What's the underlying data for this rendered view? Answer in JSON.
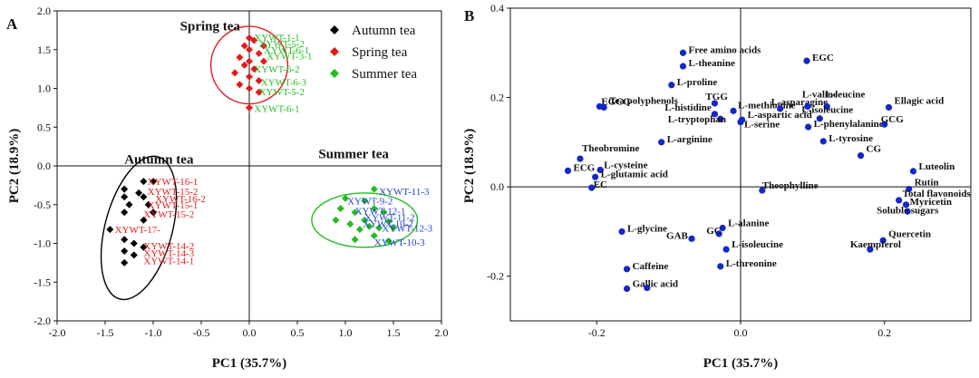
{
  "chart_data": [
    {
      "type": "scatter",
      "panel_label": "A",
      "xlabel": "PC1 (35.7%)",
      "ylabel": "PC2 (18.9%)",
      "xlim": [
        -2.0,
        2.0
      ],
      "ylim": [
        -2.0,
        2.0
      ],
      "xticks": [
        "-2.0",
        "-1.5",
        "-1.0",
        "-0.5",
        "0.0",
        "0.5",
        "1.0",
        "1.5",
        "2.0"
      ],
      "yticks": [
        "-2.0",
        "-1.5",
        "-1.0",
        "-0.5",
        "0.0",
        "0.5",
        "1.0",
        "1.5",
        "2.0"
      ],
      "legend": [
        {
          "name": "Autumn tea",
          "color": "#000000"
        },
        {
          "name": "Spring tea",
          "color": "#e31a1c"
        },
        {
          "name": "Summer tea",
          "color": "#22bb22"
        }
      ],
      "group_labels": [
        {
          "text": "Spring tea",
          "x": -0.72,
          "y": 1.75
        },
        {
          "text": "Autumn tea",
          "x": -1.3,
          "y": 0.03
        },
        {
          "text": "Summer tea",
          "x": 0.72,
          "y": 0.1
        }
      ],
      "ellipses": [
        {
          "group": "Spring tea",
          "color": "#e31a1c",
          "cx": 0.0,
          "cy": 1.3,
          "rx": 0.4,
          "ry": 0.5,
          "angle": 0
        },
        {
          "group": "Autumn tea",
          "color": "#000000",
          "cx": -1.15,
          "cy": -0.8,
          "rx": 0.35,
          "ry": 0.95,
          "angle": 15
        },
        {
          "group": "Summer tea",
          "color": "#22bb22",
          "cx": 1.2,
          "cy": -0.7,
          "rx": 0.55,
          "ry": 0.35,
          "angle": 0
        }
      ],
      "series": [
        {
          "name": "Autumn tea",
          "color": "#000000",
          "points": [
            [
              -1.1,
              -0.2
            ],
            [
              -1.0,
              -0.2
            ],
            [
              -1.3,
              -0.3
            ],
            [
              -1.15,
              -0.35
            ],
            [
              -1.1,
              -0.4
            ],
            [
              -1.3,
              -0.4
            ],
            [
              -1.25,
              -0.5
            ],
            [
              -1.05,
              -0.5
            ],
            [
              -1.3,
              -0.6
            ],
            [
              -1.0,
              -0.6
            ],
            [
              -1.1,
              -0.7
            ],
            [
              -1.45,
              -0.82
            ],
            [
              -1.3,
              -0.95
            ],
            [
              -1.2,
              -1.0
            ],
            [
              -1.1,
              -1.05
            ],
            [
              -1.3,
              -1.1
            ],
            [
              -1.2,
              -1.15
            ],
            [
              -1.3,
              -1.25
            ]
          ]
        },
        {
          "name": "Spring tea",
          "color": "#e31a1c",
          "points": [
            [
              0.0,
              1.65
            ],
            [
              0.05,
              1.62
            ],
            [
              -0.05,
              1.55
            ],
            [
              0.15,
              1.55
            ],
            [
              0.0,
              1.5
            ],
            [
              0.1,
              1.45
            ],
            [
              -0.1,
              1.4
            ],
            [
              0.0,
              1.35
            ],
            [
              0.15,
              1.35
            ],
            [
              -0.05,
              1.3
            ],
            [
              0.05,
              1.25
            ],
            [
              -0.15,
              1.2
            ],
            [
              0.0,
              1.15
            ],
            [
              0.1,
              1.1
            ],
            [
              -0.1,
              1.05
            ],
            [
              0.0,
              1.0
            ],
            [
              0.1,
              0.95
            ],
            [
              0.0,
              0.75
            ]
          ]
        },
        {
          "name": "Summer tea",
          "color": "#22bb22",
          "points": [
            [
              1.3,
              -0.3
            ],
            [
              1.0,
              -0.42
            ],
            [
              1.2,
              -0.45
            ],
            [
              0.95,
              -0.55
            ],
            [
              1.3,
              -0.55
            ],
            [
              1.1,
              -0.6
            ],
            [
              1.4,
              -0.6
            ],
            [
              0.9,
              -0.7
            ],
            [
              1.2,
              -0.7
            ],
            [
              1.45,
              -0.72
            ],
            [
              1.05,
              -0.75
            ],
            [
              1.25,
              -0.78
            ],
            [
              1.35,
              -0.8
            ],
            [
              1.15,
              -0.82
            ],
            [
              1.5,
              -0.8
            ],
            [
              1.3,
              -0.9
            ],
            [
              1.1,
              -0.95
            ],
            [
              1.45,
              -0.97
            ]
          ]
        }
      ],
      "sample_labels": [
        {
          "text": "XYWT-16-1",
          "color": "#e31a1c",
          "x": -1.06,
          "y": -0.2
        },
        {
          "text": "XYWT-15-2",
          "color": "#e31a1c",
          "x": -1.06,
          "y": -0.33
        },
        {
          "text": "XYWT-16-2",
          "color": "#e31a1c",
          "x": -0.98,
          "y": -0.42
        },
        {
          "text": "XYWT-15-1",
          "color": "#e31a1c",
          "x": -1.06,
          "y": -0.5
        },
        {
          "text": "XYWT-15-2",
          "color": "#e31a1c",
          "x": -1.1,
          "y": -0.62
        },
        {
          "text": "XYWT-17-",
          "color": "#e31a1c",
          "x": -1.4,
          "y": -0.82
        },
        {
          "text": "XYWT-14-2",
          "color": "#e31a1c",
          "x": -1.1,
          "y": -1.03
        },
        {
          "text": "XYWT-14-3",
          "color": "#e31a1c",
          "x": -1.1,
          "y": -1.12
        },
        {
          "text": "XYWT-14-1",
          "color": "#e31a1c",
          "x": -1.1,
          "y": -1.22
        },
        {
          "text": "XYWT-1-1",
          "color": "#22bb22",
          "x": 0.05,
          "y": 1.66
        },
        {
          "text": "XYWT-5-2",
          "color": "#22bb22",
          "x": 0.1,
          "y": 1.58
        },
        {
          "text": "XYWT-6-1",
          "color": "#22bb22",
          "x": 0.15,
          "y": 1.5
        },
        {
          "text": "XYWT-3-1",
          "color": "#22bb22",
          "x": 0.18,
          "y": 1.42
        },
        {
          "text": "XYWT-6-2",
          "color": "#22bb22",
          "x": 0.05,
          "y": 1.25
        },
        {
          "text": "XYWT-6-3",
          "color": "#22bb22",
          "x": 0.12,
          "y": 1.08
        },
        {
          "text": "XYWT-5-2",
          "color": "#22bb22",
          "x": 0.1,
          "y": 0.96
        },
        {
          "text": "XYWT-6-1",
          "color": "#22bb22",
          "x": 0.05,
          "y": 0.74
        },
        {
          "text": "XYWT-11-3",
          "color": "#1f3fd6",
          "x": 1.35,
          "y": -0.33
        },
        {
          "text": "XYWT-9-2",
          "color": "#1f3fd6",
          "x": 1.02,
          "y": -0.45
        },
        {
          "text": "XYWT-12-1",
          "color": "#1f3fd6",
          "x": 1.1,
          "y": -0.58
        },
        {
          "text": "XYWT-11-2",
          "color": "#1f3fd6",
          "x": 1.2,
          "y": -0.66
        },
        {
          "text": "XYWT-10-2",
          "color": "#1f3fd6",
          "x": 1.18,
          "y": -0.74
        },
        {
          "text": "XYWT-12-3",
          "color": "#1f3fd6",
          "x": 1.38,
          "y": -0.8
        },
        {
          "text": "XYWT-10-3",
          "color": "#1f3fd6",
          "x": 1.3,
          "y": -0.98
        }
      ]
    },
    {
      "type": "scatter",
      "panel_label": "B",
      "xlabel": "PC1 (35.7%)",
      "ylabel": "PC2 (18.9%)",
      "xlim": [
        -0.32,
        0.32
      ],
      "ylim": [
        -0.3,
        0.4
      ],
      "xticks": [
        "-0.2",
        "0.0",
        "0.2"
      ],
      "xtick_values": [
        -0.2,
        0.0,
        0.2
      ],
      "yticks": [
        "-0.2",
        "0.0",
        "0.2",
        "0.4"
      ],
      "ytick_values": [
        -0.2,
        0.0,
        0.2,
        0.4
      ],
      "color": "#1428c8",
      "points": [
        {
          "label": "Free amino acids",
          "x": -0.08,
          "y": 0.3,
          "dx": 6,
          "dy": -4
        },
        {
          "label": "L-theanine",
          "x": -0.08,
          "y": 0.27,
          "dx": 6,
          "dy": -4
        },
        {
          "label": "L-proline",
          "x": -0.096,
          "y": 0.228,
          "dx": 6,
          "dy": -4
        },
        {
          "label": "EGC",
          "x": 0.092,
          "y": 0.282,
          "dx": 6,
          "dy": -4
        },
        {
          "label": "EGCG",
          "x": -0.196,
          "y": 0.18,
          "dx": 2,
          "dy": -6
        },
        {
          "label": "Tea polyphenols",
          "x": -0.19,
          "y": 0.178,
          "dx": 6,
          "dy": -8
        },
        {
          "label": "TGG",
          "x": -0.036,
          "y": 0.187,
          "dx": -10,
          "dy": -8
        },
        {
          "label": "L-histidine",
          "x": -0.036,
          "y": 0.163,
          "dx": -55,
          "dy": -8
        },
        {
          "label": "L-tryptophan",
          "x": -0.028,
          "y": 0.152,
          "dx": -58,
          "dy": 0
        },
        {
          "label": "L-methionine",
          "x": -0.01,
          "y": 0.17,
          "dx": 5,
          "dy": -7
        },
        {
          "label": "L-aspartic acid",
          "x": 0.002,
          "y": 0.15,
          "dx": 6,
          "dy": -6
        },
        {
          "label": "L-serine",
          "x": 0.0,
          "y": 0.145,
          "dx": 4,
          "dy": 2
        },
        {
          "label": "L-asparagine",
          "x": 0.055,
          "y": 0.175,
          "dx": -10,
          "dy": -8
        },
        {
          "label": "L-valine",
          "x": 0.093,
          "y": 0.18,
          "dx": -6,
          "dy": -14
        },
        {
          "label": "L-leucine",
          "x": 0.12,
          "y": 0.18,
          "dx": -2,
          "dy": -14
        },
        {
          "label": "Ellagic acid",
          "x": 0.206,
          "y": 0.178,
          "dx": 6,
          "dy": -8
        },
        {
          "label": "L-phenylalanine",
          "x": 0.094,
          "y": 0.134,
          "dx": 6,
          "dy": -4
        },
        {
          "label": "L-isoleucine",
          "x": 0.11,
          "y": 0.153,
          "dx": -20,
          "dy": -10
        },
        {
          "label": "GCG",
          "x": 0.2,
          "y": 0.14,
          "dx": -4,
          "dy": -6
        },
        {
          "label": "L-tyrosine",
          "x": 0.115,
          "y": 0.102,
          "dx": 6,
          "dy": -4
        },
        {
          "label": "CG",
          "x": 0.167,
          "y": 0.07,
          "dx": 6,
          "dy": -8
        },
        {
          "label": "L-arginine",
          "x": -0.11,
          "y": 0.1,
          "dx": 6,
          "dy": -4
        },
        {
          "label": "Theobromine",
          "x": -0.223,
          "y": 0.063,
          "dx": 2,
          "dy": -12
        },
        {
          "label": "L-cysteine",
          "x": -0.195,
          "y": 0.038,
          "dx": 4,
          "dy": -6
        },
        {
          "label": "L-glutamic acid",
          "x": -0.202,
          "y": 0.022,
          "dx": 6,
          "dy": -4
        },
        {
          "label": "ECG",
          "x": -0.24,
          "y": 0.036,
          "dx": 6,
          "dy": -4
        },
        {
          "label": "EC",
          "x": -0.207,
          "y": -0.002,
          "dx": 2,
          "dy": -4
        },
        {
          "label": "Luteolin",
          "x": 0.24,
          "y": 0.035,
          "dx": 6,
          "dy": -6
        },
        {
          "label": "Rutin",
          "x": 0.234,
          "y": -0.005,
          "dx": 6,
          "dy": -8
        },
        {
          "label": "Total flavonoids",
          "x": 0.22,
          "y": -0.03,
          "dx": 4,
          "dy": -8
        },
        {
          "label": "Myricetin",
          "x": 0.23,
          "y": -0.04,
          "dx": 4,
          "dy": -4
        },
        {
          "label": "Soluble sugars",
          "x": 0.232,
          "y": -0.055,
          "dx": -34,
          "dy": -2
        },
        {
          "label": "Quercetin",
          "x": 0.198,
          "y": -0.12,
          "dx": 6,
          "dy": -8
        },
        {
          "label": "Kaempferol",
          "x": 0.18,
          "y": -0.14,
          "dx": -22,
          "dy": -6
        },
        {
          "label": "Theophylline",
          "x": 0.03,
          "y": -0.008,
          "dx": 0,
          "dy": -6
        },
        {
          "label": "L-glycine",
          "x": -0.165,
          "y": -0.1,
          "dx": 6,
          "dy": -4
        },
        {
          "label": "L-alanine",
          "x": -0.025,
          "y": -0.092,
          "dx": 6,
          "dy": -6
        },
        {
          "label": "GAB",
          "x": -0.068,
          "y": -0.116,
          "dx": -28,
          "dy": -4
        },
        {
          "label": "GC",
          "x": -0.03,
          "y": -0.105,
          "dx": -14,
          "dy": -4
        },
        {
          "label": "L-isoleucine",
          "x": -0.02,
          "y": -0.14,
          "dx": 6,
          "dy": -6
        },
        {
          "label": "Caffeine",
          "x": -0.158,
          "y": -0.184,
          "dx": 6,
          "dy": -4
        },
        {
          "label": "L-threonine",
          "x": -0.028,
          "y": -0.178,
          "dx": 6,
          "dy": -4
        },
        {
          "label": "Gallic acid",
          "x": -0.158,
          "y": -0.228,
          "dx": 6,
          "dy": -6
        },
        {
          "label": "",
          "x": -0.13,
          "y": -0.226,
          "dx": 0,
          "dy": 0
        }
      ]
    }
  ]
}
